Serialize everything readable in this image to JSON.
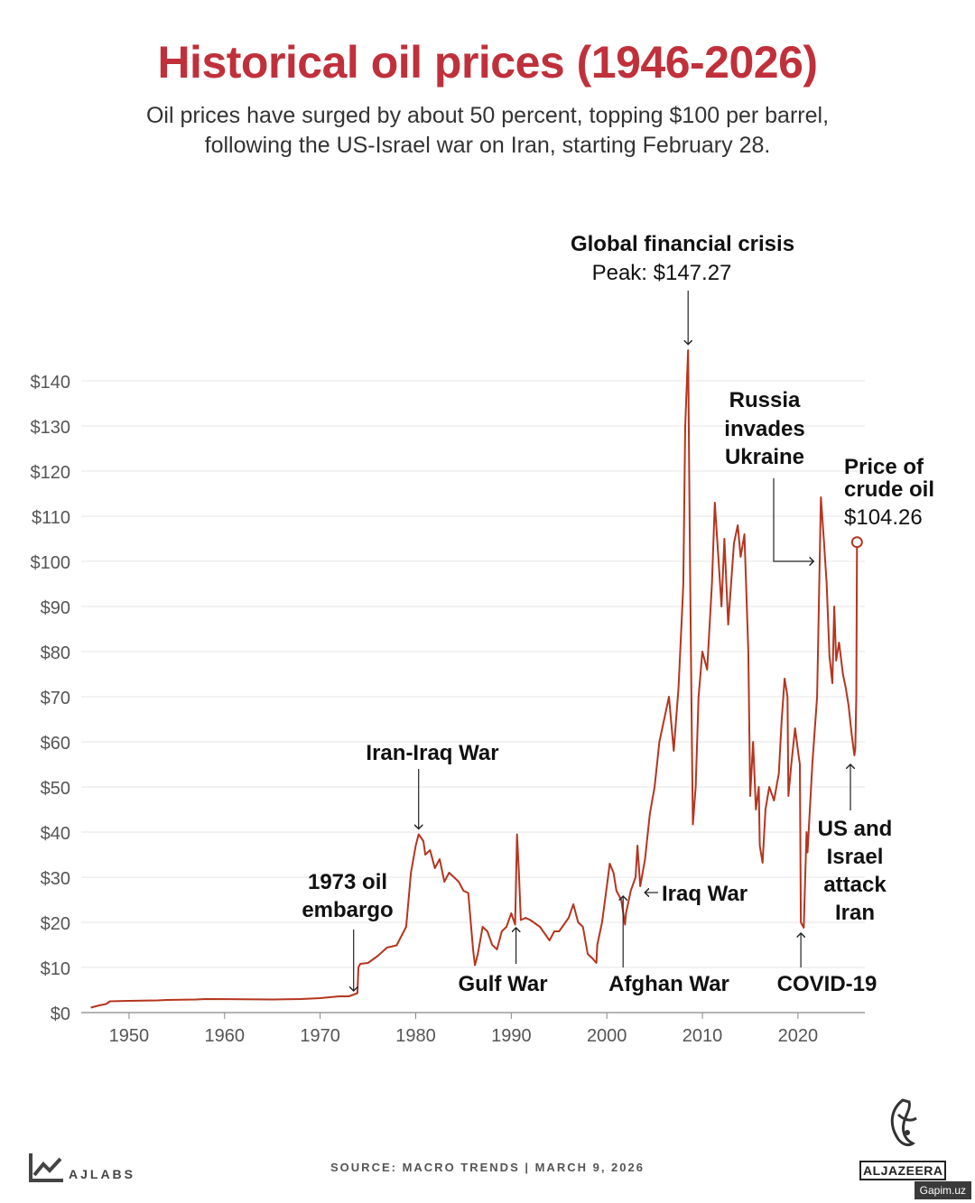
{
  "header": {
    "title": "Historical oil prices (1946-2026)",
    "subtitle_line1": "Oil prices have surged by about 50 percent, topping $100 per barrel,",
    "subtitle_line2": "following the US-Israel war on Iran, starting February 28."
  },
  "footer": {
    "source": "SOURCE:  MACRO TRENDS   |   MARCH 9, 2026",
    "brand_left": "AJLABS",
    "brand_right": "ALJAZEERA",
    "watermark": "Gapim.uz"
  },
  "colors": {
    "title": "#c0303b",
    "line": "#b5351f",
    "grid": "#e6e6e6"
  },
  "chart_data": {
    "type": "line",
    "xlim": [
      1945,
      2027
    ],
    "ylim": [
      0,
      150
    ],
    "x_ticks": [
      1950,
      1960,
      1970,
      1980,
      1990,
      2000,
      2010,
      2020
    ],
    "x_tick_labels": [
      "1950",
      "1960",
      "1970",
      "1980",
      "1990",
      "2000",
      "2010",
      "2020"
    ],
    "y_ticks": [
      0,
      10,
      20,
      30,
      40,
      50,
      60,
      70,
      80,
      90,
      100,
      110,
      120,
      130,
      140
    ],
    "y_tick_labels": [
      "$0",
      "$10",
      "$20",
      "$30",
      "$40",
      "$50",
      "$60",
      "$70",
      "$80",
      "$90",
      "$100",
      "$110",
      "$120",
      "$130",
      "$140"
    ],
    "grid": "horizontal",
    "series": [
      {
        "x": [
          1946,
          1946.9,
          1947.6,
          1948,
          1950,
          1953,
          1954,
          1957,
          1958,
          1965,
          1968,
          1970,
          1971,
          1972,
          1973,
          1973.9,
          1974,
          1974.2,
          1975,
          1976,
          1977,
          1978,
          1979,
          1979.5,
          1980,
          1980.3,
          1980.8,
          1981,
          1981.5,
          1982,
          1982.5,
          1983,
          1983.5,
          1984,
          1984.5,
          1985,
          1985.5,
          1986,
          1986.2,
          1986.5,
          1987,
          1987.5,
          1988,
          1988.5,
          1989,
          1989.5,
          1990,
          1990.4,
          1990.6,
          1990.8,
          1991,
          1991.5,
          1992,
          1993,
          1993.5,
          1994,
          1994.5,
          1995,
          1996,
          1996.5,
          1997,
          1997.5,
          1998,
          1998.5,
          1998.9,
          1999,
          1999.5,
          2000,
          2000.3,
          2000.7,
          2001,
          2001.5,
          2001.9,
          2002,
          2002.5,
          2003,
          2003.2,
          2003.5,
          2004,
          2004.5,
          2005,
          2005.5,
          2006,
          2006.5,
          2007,
          2007.5,
          2007.9,
          2008,
          2008.2,
          2008.5,
          2008.7,
          2008.9,
          2009,
          2009.3,
          2009.6,
          2010,
          2010.5,
          2011,
          2011.3,
          2011.7,
          2012,
          2012.3,
          2012.7,
          2013,
          2013.3,
          2013.7,
          2014,
          2014.4,
          2014.8,
          2015,
          2015.3,
          2015.6,
          2015.9,
          2016,
          2016.3,
          2016.6,
          2017,
          2017.5,
          2018,
          2018.3,
          2018.6,
          2018.9,
          2019,
          2019.3,
          2019.7,
          2020,
          2020.2,
          2020.3,
          2020.6,
          2020.9,
          2021,
          2021.5,
          2022,
          2022.2,
          2022.4,
          2022.7,
          2023,
          2023.3,
          2023.6,
          2023.8,
          2024,
          2024.3,
          2024.7,
          2025,
          2025.3,
          2025.6,
          2025.9,
          2026,
          2026.1,
          2026.18
        ],
        "y": [
          1.1,
          1.6,
          1.9,
          2.5,
          2.6,
          2.7,
          2.8,
          2.9,
          3.0,
          2.9,
          3.0,
          3.2,
          3.4,
          3.6,
          3.6,
          4.3,
          10,
          10.8,
          11,
          12.5,
          14.4,
          14.9,
          19,
          31,
          37,
          39.5,
          38,
          35,
          36,
          32,
          34,
          29,
          31,
          30,
          29,
          27,
          26.5,
          14,
          10.5,
          13,
          19,
          18,
          15,
          14,
          18,
          19,
          22,
          19.5,
          39.5,
          31,
          20.5,
          21,
          20.5,
          19,
          17.5,
          16,
          18,
          18,
          21,
          24,
          20,
          19,
          13,
          12,
          11,
          15,
          20,
          28,
          33,
          31,
          27,
          25,
          19.5,
          22,
          27,
          30,
          37,
          28,
          34,
          44,
          50,
          60,
          65,
          70,
          58,
          72,
          90,
          95,
          130,
          146.8,
          100,
          60,
          41.7,
          50,
          70,
          80,
          76,
          95,
          113,
          100,
          90,
          105,
          86,
          95,
          104,
          108,
          101,
          106,
          80,
          48,
          60,
          45,
          50,
          37,
          33.2,
          45,
          50,
          47,
          53,
          65,
          74,
          70,
          48,
          55,
          63,
          58,
          55,
          20,
          18.8,
          40,
          35.5,
          55,
          70,
          92,
          114.2,
          105,
          95,
          79,
          73,
          90,
          78,
          82,
          75,
          72,
          68,
          62,
          57,
          58.5,
          70,
          104.26
        ]
      }
    ],
    "annotations": [
      {
        "id": "gfc",
        "title": "Global financial crisis",
        "detail": "Peak: $147.27",
        "x": 2008.5,
        "y": 147.27
      },
      {
        "id": "russia",
        "title": "Russia invades Ukraine",
        "x": 2022.2,
        "y": 100
      },
      {
        "id": "price",
        "title": "Price of crude oil",
        "detail": "$104.26",
        "x": 2026.18,
        "y": 104.26
      },
      {
        "id": "iraniraq",
        "title": "Iran-Iraq War",
        "x": 1980.3,
        "y": 39.5
      },
      {
        "id": "embargo",
        "title": "1973 oil embargo",
        "x": 1973.5,
        "y": 3.6
      },
      {
        "id": "gulf",
        "title": "Gulf War",
        "x": 1990.5,
        "y": 20
      },
      {
        "id": "afghan",
        "title": "Afghan War",
        "x": 2001.7,
        "y": 27
      },
      {
        "id": "iraqwar",
        "title": "Iraq War",
        "x": 2003.6,
        "y": 27
      },
      {
        "id": "covid",
        "title": "COVID-19",
        "x": 2020.3,
        "y": 18.8
      },
      {
        "id": "usisrael",
        "title": "US and Israel attack Iran",
        "x": 2025.9,
        "y": 57
      }
    ]
  }
}
